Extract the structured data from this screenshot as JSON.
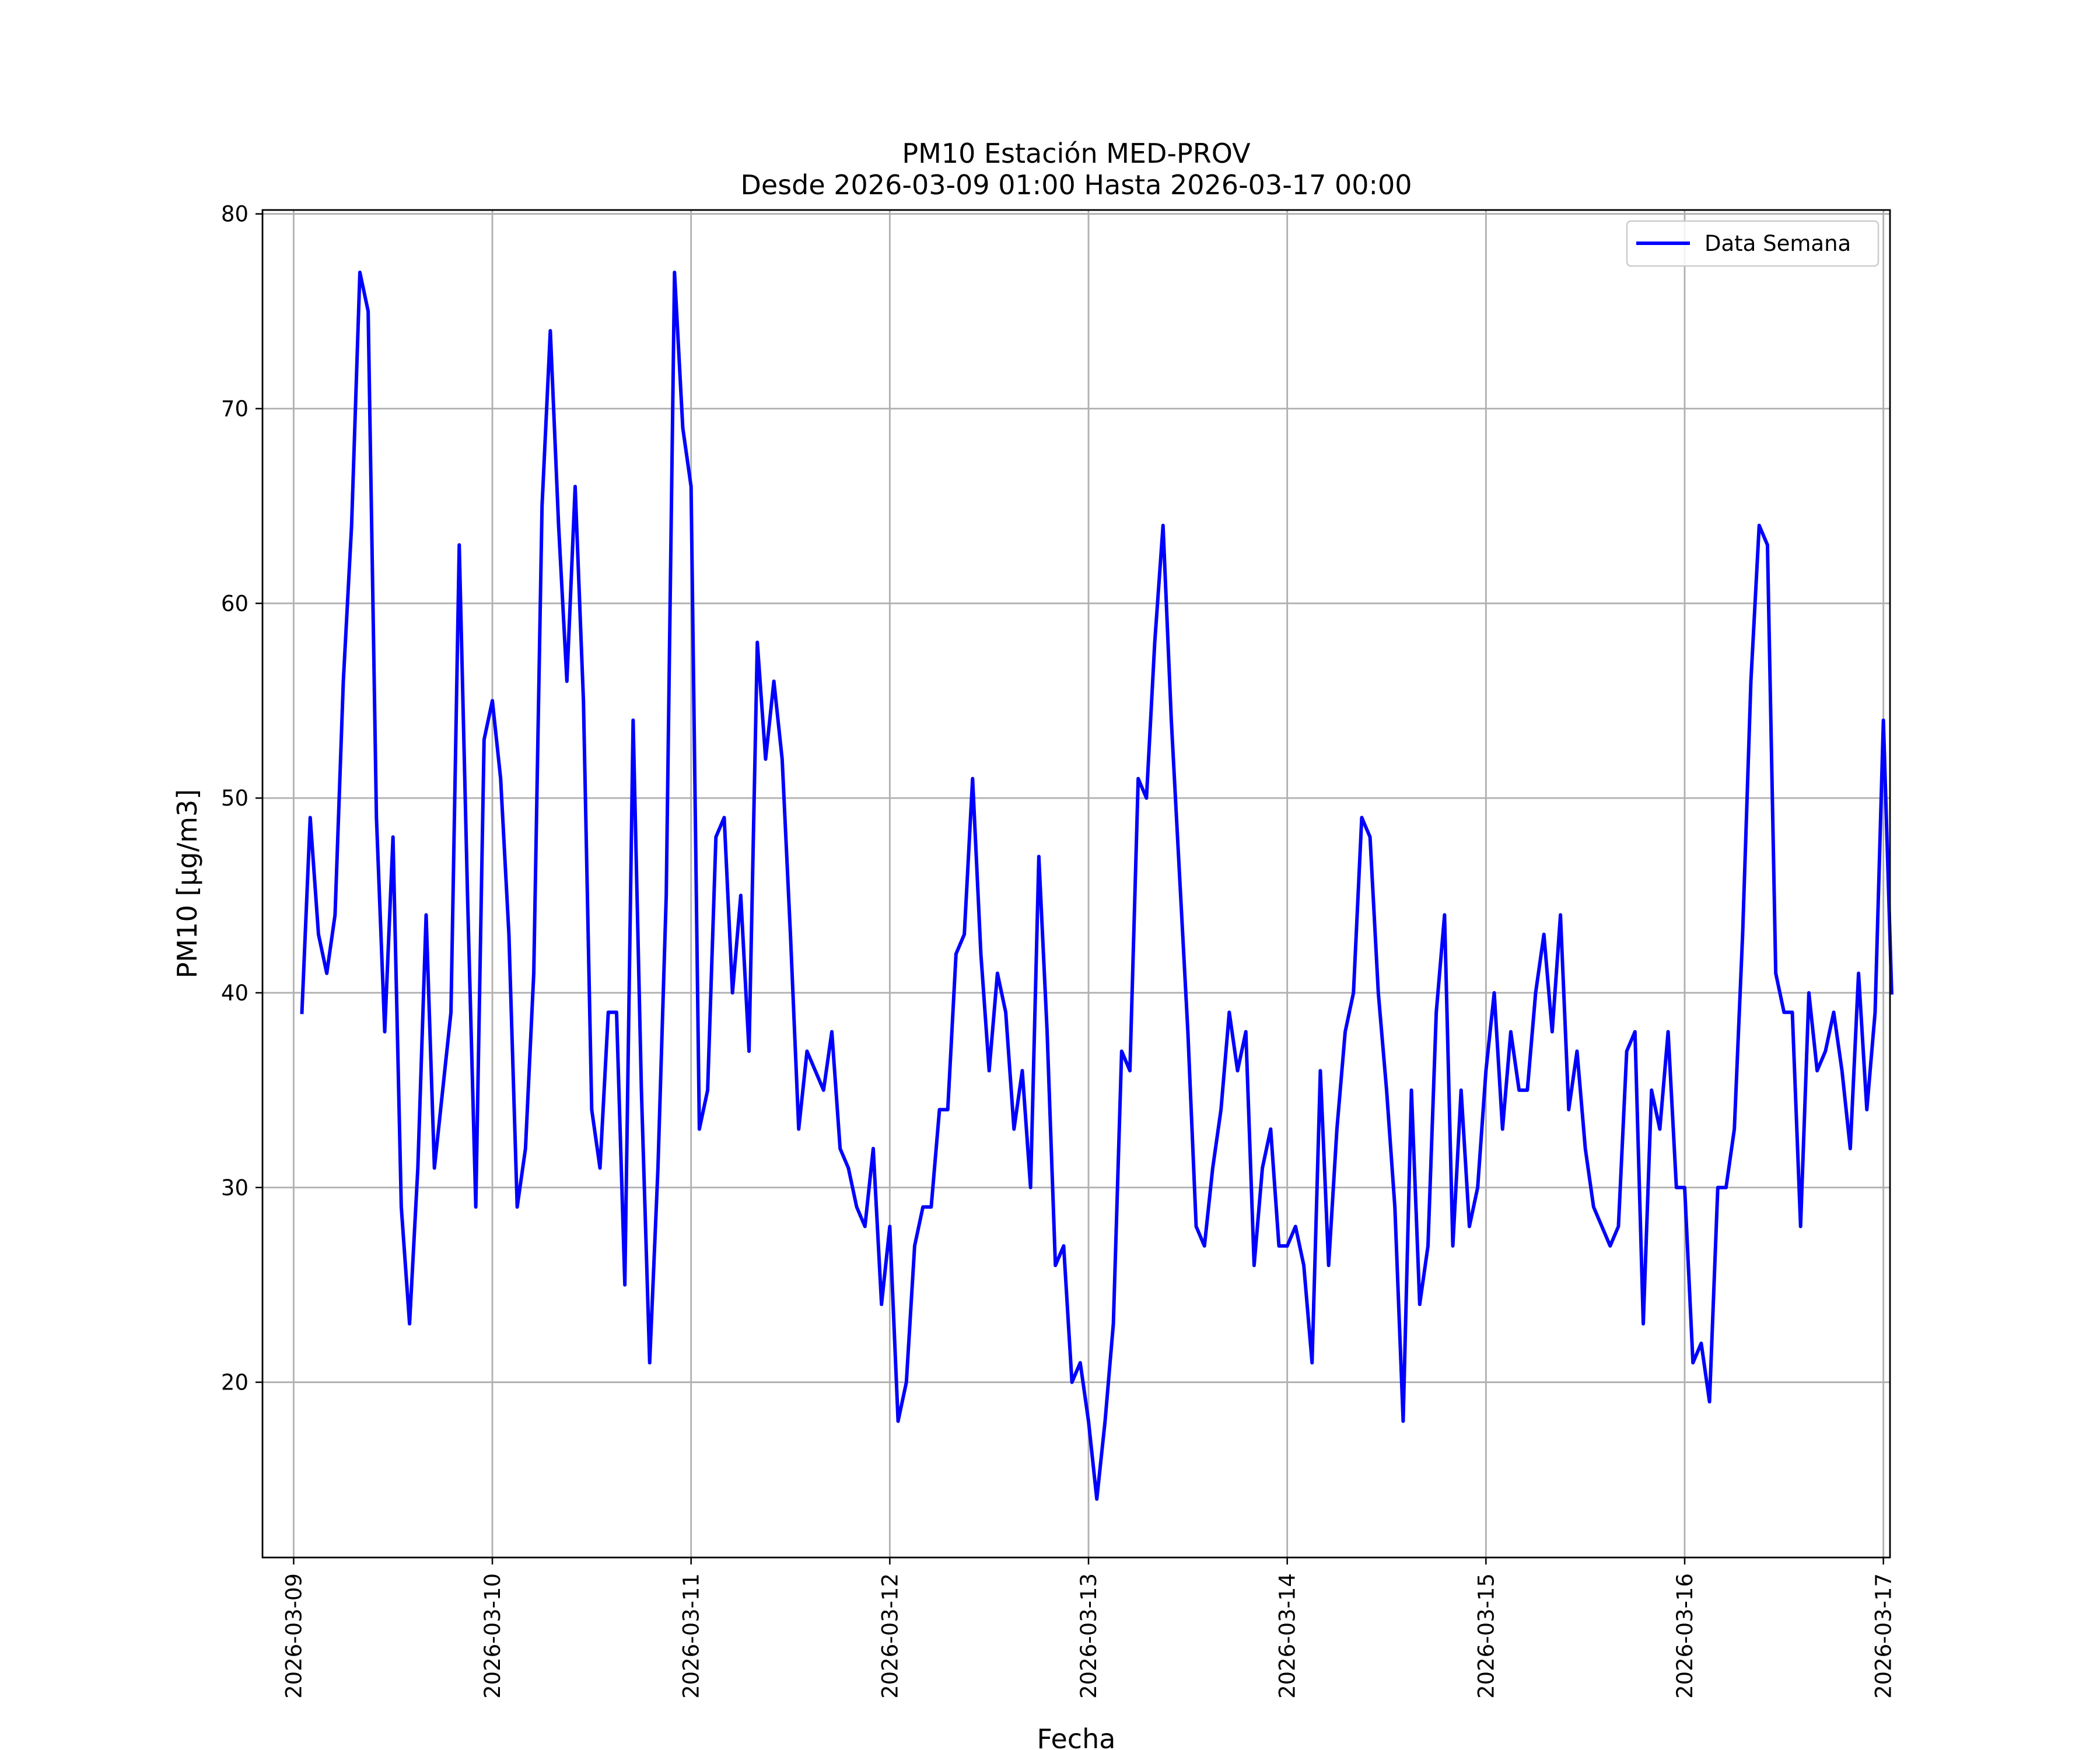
{
  "chart_data": {
    "type": "line",
    "title": [
      "PM10 Estación MED-PROV",
      "Desde 2026-03-09 01:00 Hasta 2026-03-17 00:00"
    ],
    "xlabel": "Fecha",
    "ylabel": "PM10 [μg/m3]",
    "xlim": [
      -0.1567,
      8.0333
    ],
    "ylim": [
      11,
      80.2
    ],
    "grid": true,
    "legend_position": "top-right",
    "x_ticks": [
      {
        "value": 0,
        "label": "2026-03-09"
      },
      {
        "value": 1,
        "label": "2026-03-10"
      },
      {
        "value": 2,
        "label": "2026-03-11"
      },
      {
        "value": 3,
        "label": "2026-03-12"
      },
      {
        "value": 4,
        "label": "2026-03-13"
      },
      {
        "value": 5,
        "label": "2026-03-14"
      },
      {
        "value": 6,
        "label": "2026-03-15"
      },
      {
        "value": 7,
        "label": "2026-03-16"
      },
      {
        "value": 8,
        "label": "2026-03-17"
      }
    ],
    "y_ticks": [
      20,
      30,
      40,
      50,
      60,
      70,
      80
    ],
    "series": [
      {
        "name": "Data Semana",
        "color": "#0000ff",
        "x_start": "2026-03-09 01:00",
        "x_step_hours": 1,
        "values": [
          39,
          49,
          43,
          41,
          44,
          56,
          64,
          77,
          75,
          49,
          38,
          48,
          29,
          23,
          31,
          44,
          31,
          35,
          39,
          63,
          45,
          29,
          53,
          55,
          51,
          43,
          29,
          32,
          41,
          65,
          74,
          64,
          56,
          66,
          55,
          34,
          31,
          39,
          39,
          25,
          54,
          35,
          21,
          31,
          45,
          77,
          69,
          66,
          33,
          35,
          48,
          49,
          40,
          45,
          37,
          58,
          52,
          56,
          52,
          43,
          33,
          37,
          36,
          35,
          38,
          32,
          31,
          29,
          28,
          32,
          24,
          28,
          18,
          20,
          27,
          29,
          29,
          34,
          34,
          42,
          43,
          51,
          42,
          36,
          41,
          39,
          33,
          36,
          30,
          47,
          38,
          26,
          27,
          20,
          21,
          18,
          14,
          18,
          23,
          37,
          36,
          51,
          50,
          58,
          64,
          54,
          46,
          38,
          28,
          27,
          31,
          34,
          39,
          36,
          38,
          26,
          31,
          33,
          27,
          27,
          28,
          26,
          21,
          36,
          26,
          33,
          38,
          40,
          49,
          48,
          40,
          35,
          29,
          18,
          35,
          24,
          27,
          39,
          44,
          27,
          35,
          28,
          30,
          36,
          40,
          33,
          38,
          35,
          35,
          40,
          43,
          38,
          44,
          34,
          37,
          32,
          29,
          28,
          27,
          28,
          37,
          38,
          23,
          35,
          33,
          38,
          30,
          30,
          21,
          22,
          19,
          30,
          30,
          33,
          43,
          56,
          64,
          63,
          41,
          39,
          39,
          28,
          40,
          36,
          37,
          39,
          36,
          32,
          41,
          34,
          39,
          54,
          40
        ]
      }
    ]
  }
}
